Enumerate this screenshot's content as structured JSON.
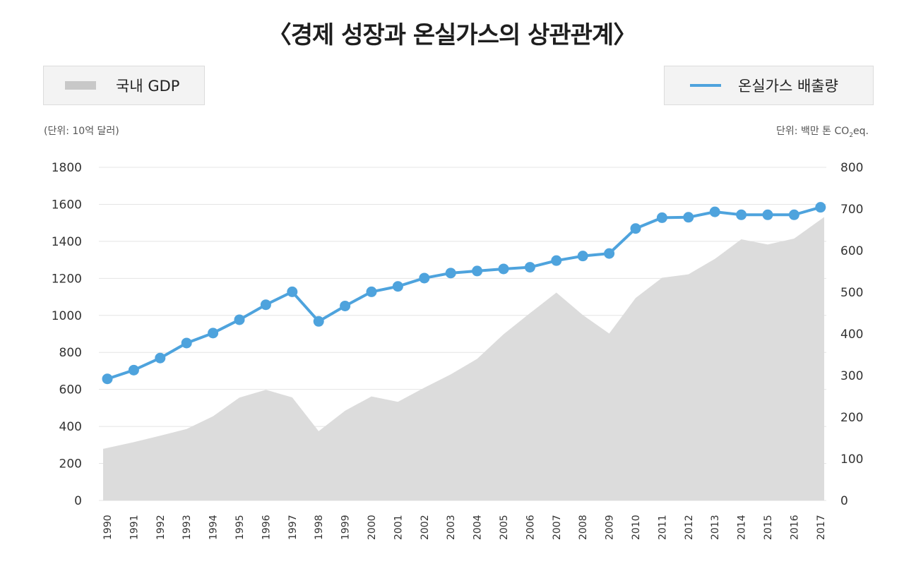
{
  "title": "〈경제 성장과 온실가스의 상관관계〉",
  "legend": {
    "gdp_label": "국내 GDP",
    "ghg_label": "온실가스 배출량"
  },
  "units": {
    "left": "(단위: 10억 달러)",
    "right_prefix": "단위: 백만 톤 CO",
    "right_sub": "2",
    "right_suffix": "eq."
  },
  "colors": {
    "area": "#dcdcdc",
    "line": "#4ea3dd",
    "grid": "#e4e4e4"
  },
  "chart_data": {
    "type": "line",
    "categories": [
      "1990",
      "1991",
      "1992",
      "1993",
      "1994",
      "1995",
      "1996",
      "1997",
      "1998",
      "1999",
      "2000",
      "2001",
      "2002",
      "2003",
      "2004",
      "2005",
      "2006",
      "2007",
      "2008",
      "2009",
      "2010",
      "2011",
      "2012",
      "2013",
      "2014",
      "2015",
      "2016",
      "2017"
    ],
    "series": [
      {
        "name": "국내 GDP",
        "type": "area",
        "axis": "left",
        "values": [
          279,
          315,
          350,
          386,
          455,
          556,
          598,
          557,
          374,
          485,
          562,
          533,
          609,
          681,
          765,
          898,
          1012,
          1123,
          1002,
          902,
          1094,
          1203,
          1222,
          1305,
          1411,
          1383,
          1415,
          1531
        ]
      },
      {
        "name": "온실가스 배출량",
        "type": "line",
        "axis": "right",
        "values": [
          292,
          313,
          342,
          378,
          402,
          434,
          470,
          501,
          430,
          467,
          501,
          514,
          534,
          546,
          551,
          556,
          560,
          576,
          587,
          593,
          653,
          679,
          680,
          693,
          686,
          686,
          686,
          704
        ]
      }
    ],
    "y_left": {
      "min": 0,
      "max": 1800,
      "ticks": [
        0,
        200,
        400,
        600,
        800,
        1000,
        1200,
        1400,
        1600,
        1800
      ]
    },
    "y_right": {
      "min": 0,
      "max": 800,
      "ticks": [
        0,
        100,
        200,
        300,
        400,
        500,
        600,
        700,
        800
      ]
    },
    "grid": true,
    "legend_position": "top"
  }
}
